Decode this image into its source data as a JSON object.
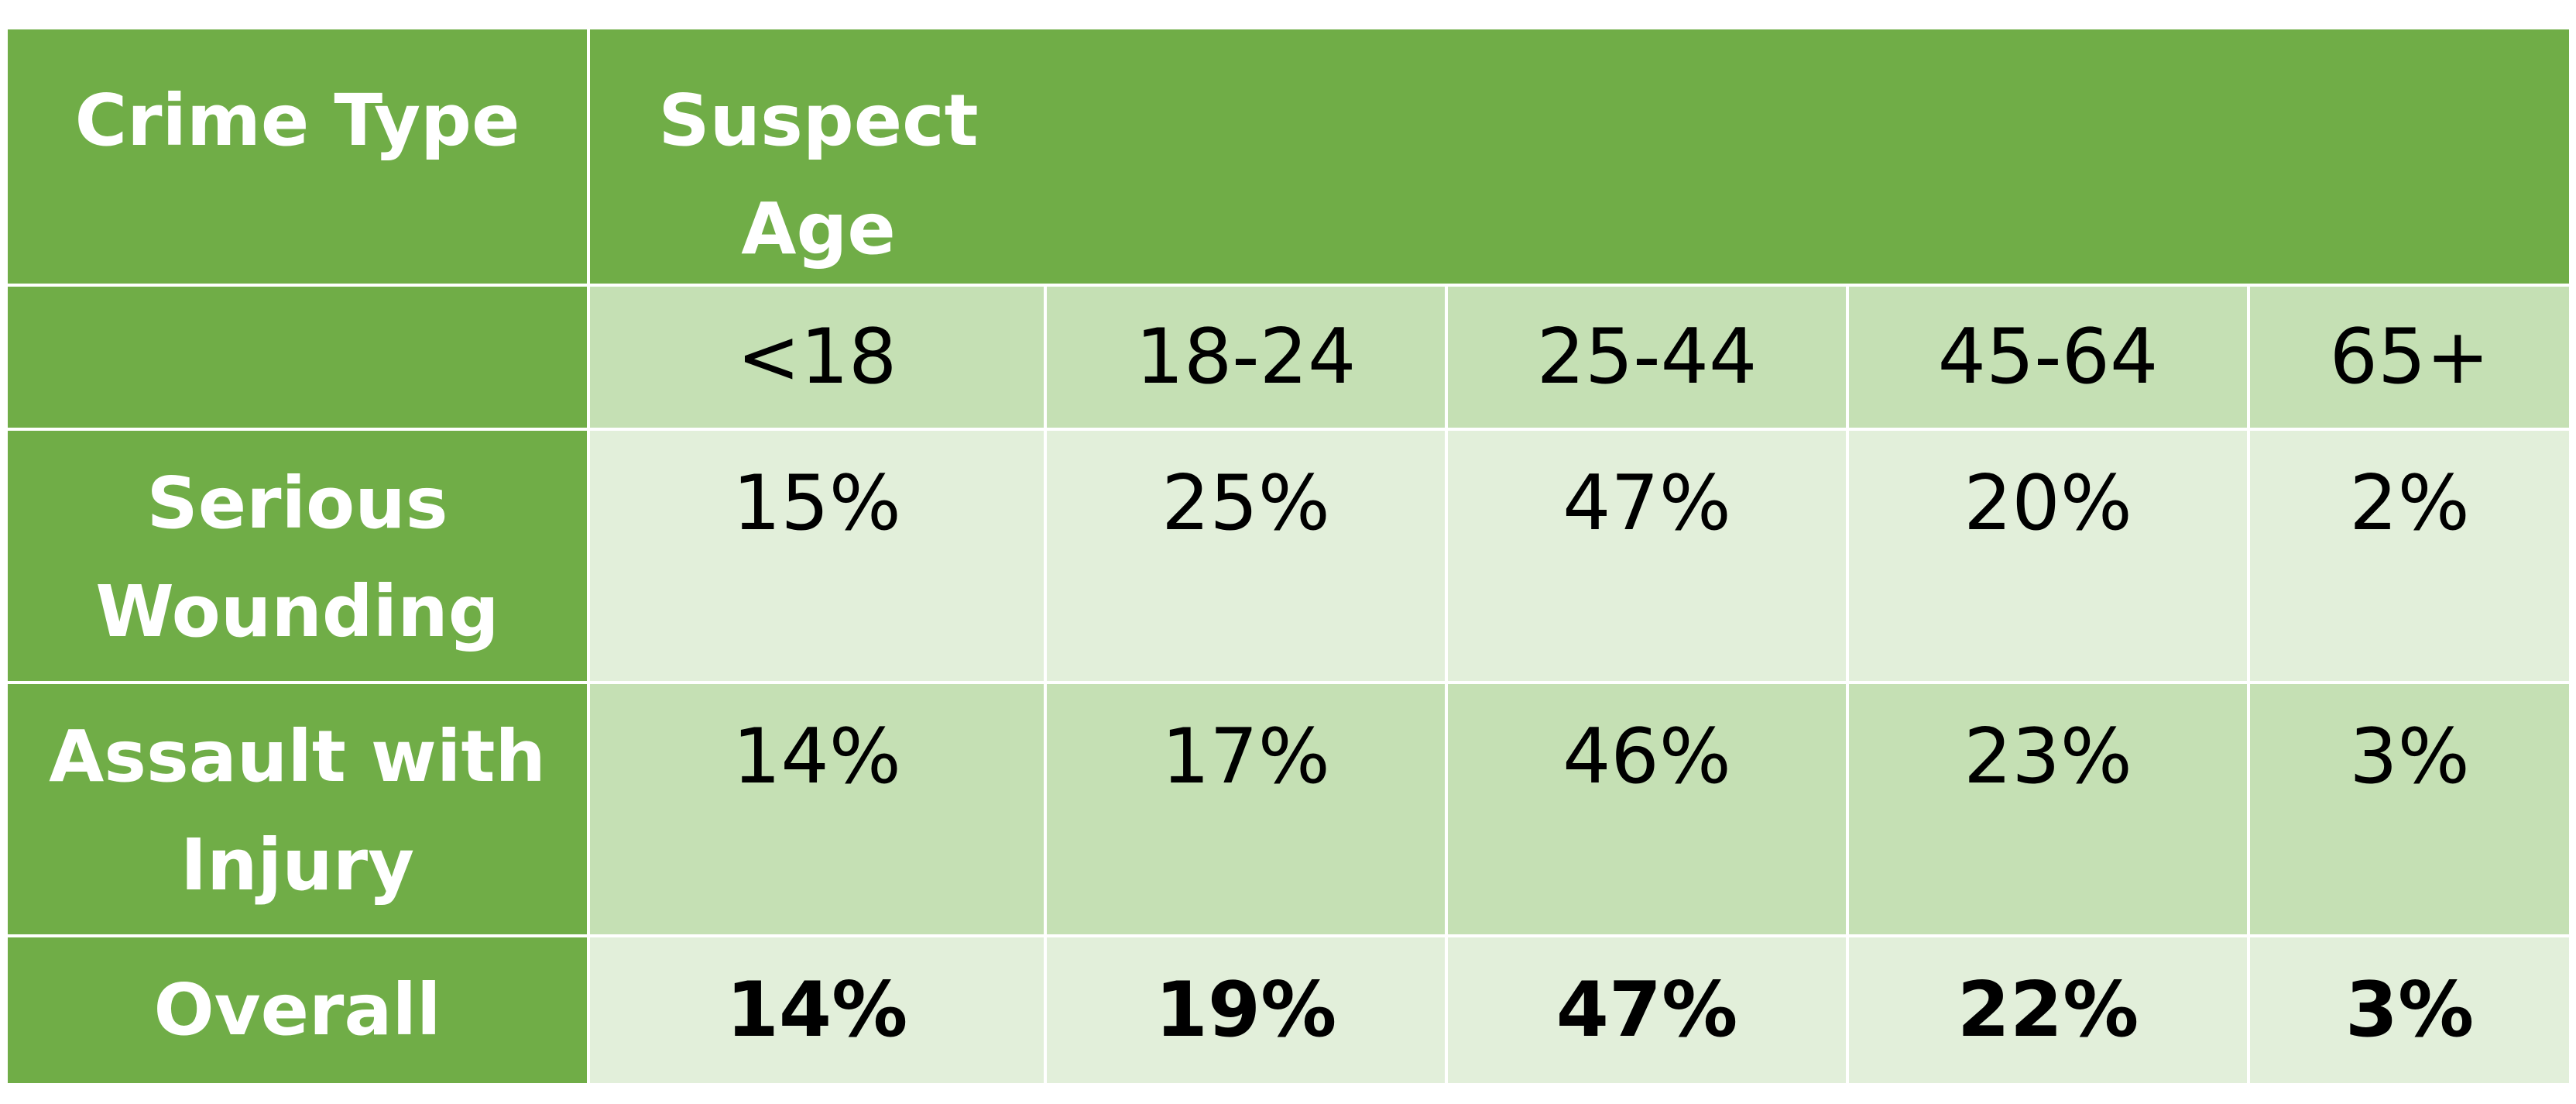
{
  "table": {
    "header": {
      "crime_type": "Crime Type",
      "suspect_age": "Suspect Age"
    },
    "age_groups": [
      "<18",
      "18-24",
      "25-44",
      "45-64",
      "65+"
    ],
    "rows": [
      {
        "label": "Serious Wounding",
        "values": [
          "15%",
          "25%",
          "47%",
          "20%",
          "2%"
        ]
      },
      {
        "label": "Assault with Injury",
        "values": [
          "14%",
          "17%",
          "46%",
          "23%",
          "3%"
        ]
      },
      {
        "label": "Overall",
        "values": [
          "14%",
          "19%",
          "47%",
          "22%",
          "3%"
        ]
      }
    ]
  },
  "colors": {
    "header_green": "#70ad47",
    "band_dark": "#c5e0b4",
    "band_light": "#e2efda"
  }
}
